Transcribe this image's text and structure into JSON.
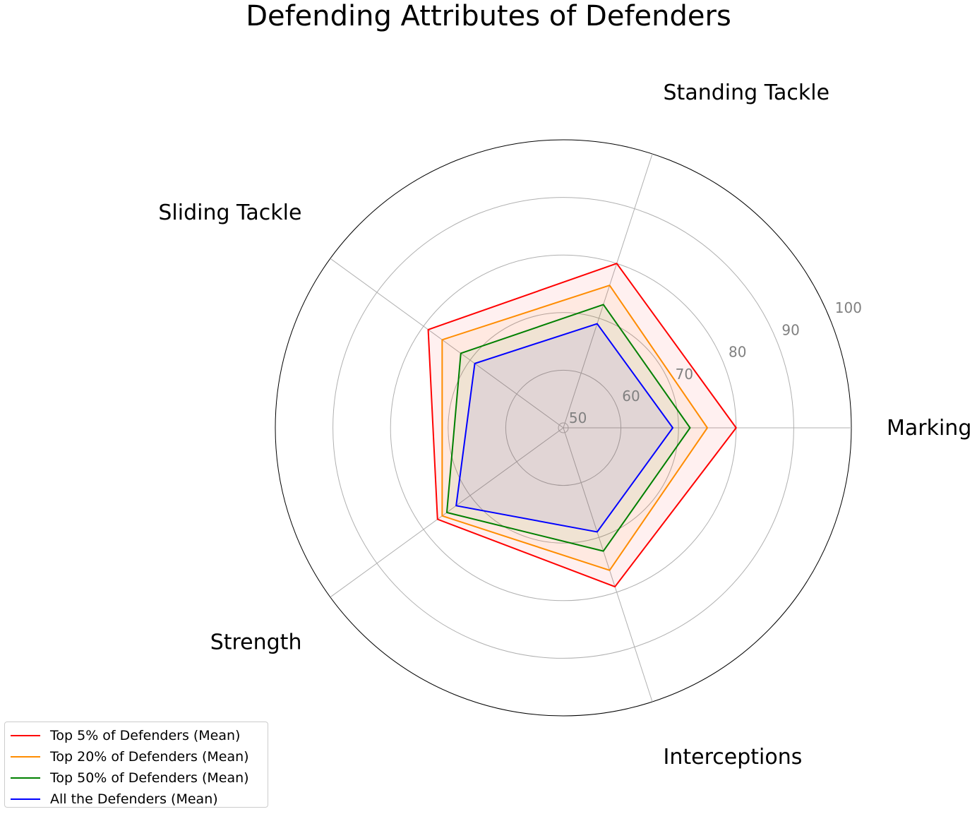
{
  "chart_data": {
    "type": "radar",
    "title": "Defending Attributes of Defenders",
    "axes": [
      "Marking",
      "Standing Tackle",
      "Sliding Tackle",
      "Strength",
      "Interceptions"
    ],
    "rlim": [
      50,
      100
    ],
    "rticks": [
      50,
      60,
      70,
      80,
      90,
      100
    ],
    "grid": true,
    "legend_position": "lower-left",
    "series": [
      {
        "name": "Top 5% of Defenders (Mean)",
        "color": "#ff0000",
        "fill": true,
        "values": [
          80,
          80,
          79,
          77,
          79
        ]
      },
      {
        "name": "Top 20% of Defenders (Mean)",
        "color": "#ff8c00",
        "fill": true,
        "values": [
          75,
          76,
          76,
          76,
          76
        ]
      },
      {
        "name": "Top 50% of Defenders (Mean)",
        "color": "#008000",
        "fill": true,
        "values": [
          72,
          72.5,
          72,
          75,
          72.5
        ]
      },
      {
        "name": "All the Defenders (Mean)",
        "color": "#0000ff",
        "fill": true,
        "values": [
          69,
          69,
          69,
          73,
          69
        ]
      }
    ]
  }
}
